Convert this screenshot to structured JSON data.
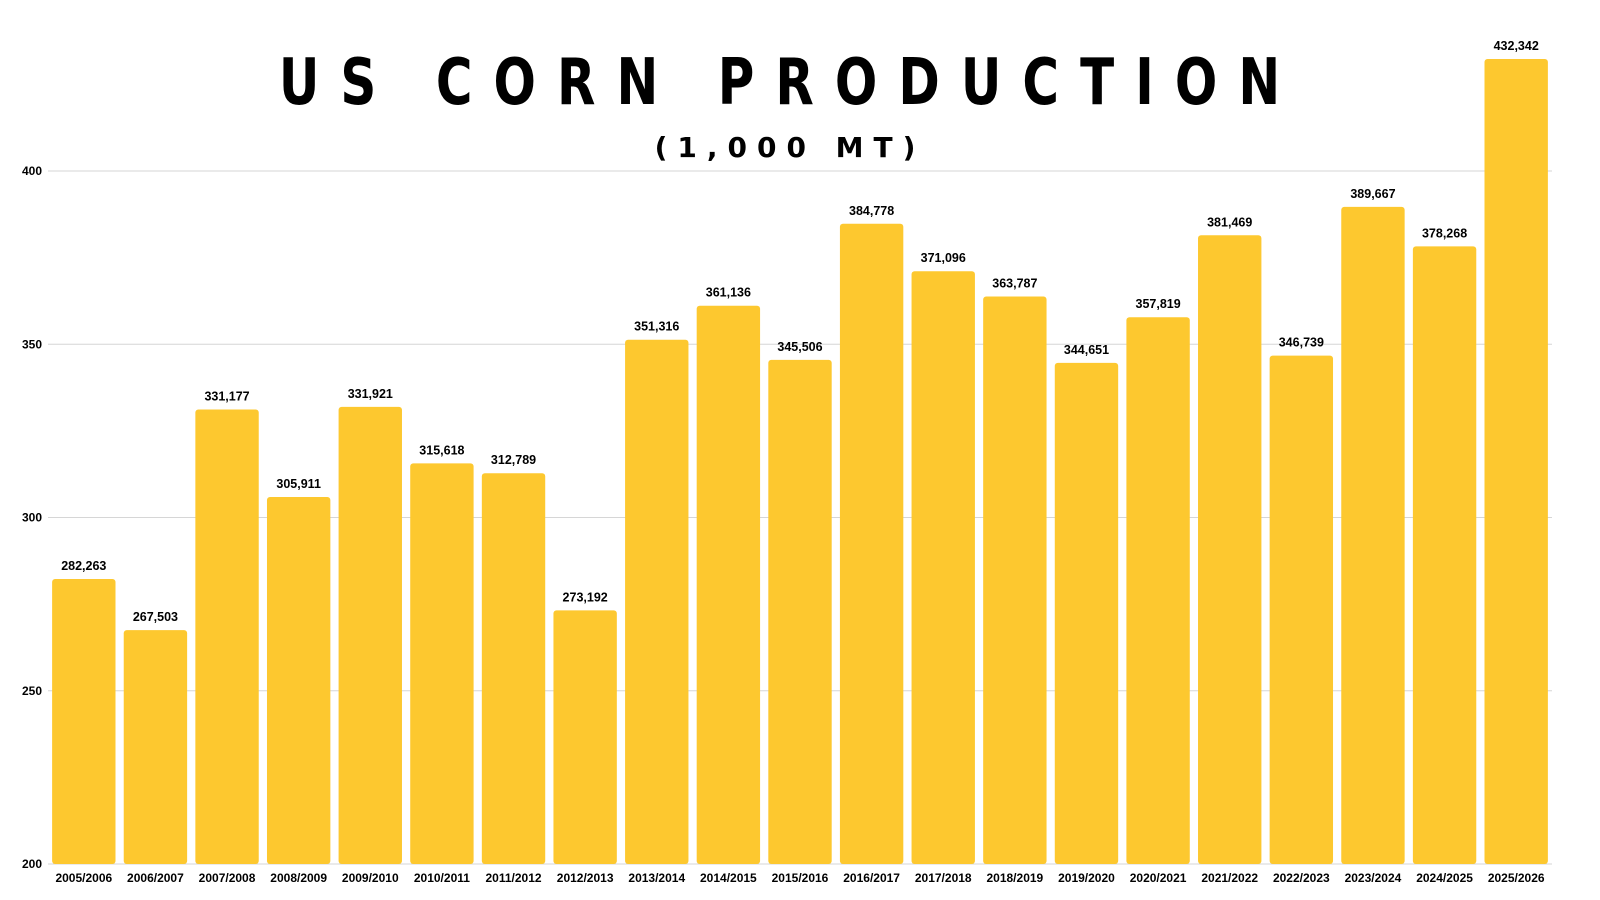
{
  "chart_data": {
    "type": "bar",
    "title": "US CORN PRODUCTION",
    "subtitle": "(1,000 MT)",
    "xlabel": "",
    "ylabel": "",
    "ylim": [
      200,
      432.342
    ],
    "yticks": [
      "200",
      "250",
      "300",
      "350",
      "400"
    ],
    "grid": true,
    "bar_color": "#fdc82f",
    "categories": [
      "2005/2006",
      "2006/2007",
      "2007/2008",
      "2008/2009",
      "2009/2010",
      "2010/2011",
      "2011/2012",
      "2012/2013",
      "2013/2014",
      "2014/2015",
      "2015/2016",
      "2016/2017",
      "2017/2018",
      "2018/2019",
      "2019/2020",
      "2020/2021",
      "2021/2022",
      "2022/2023",
      "2023/2024",
      "2024/2025",
      "2025/2026"
    ],
    "values": [
      282.263,
      267.503,
      331.177,
      305.911,
      331.921,
      315.618,
      312.789,
      273.192,
      351.316,
      361.136,
      345.506,
      384.778,
      371.096,
      363.787,
      344.651,
      357.819,
      381.469,
      346.739,
      389.667,
      378.268,
      432.342
    ],
    "labels": [
      "282,263",
      "267,503",
      "331,177",
      "305,911",
      "331,921",
      "315,618",
      "312,789",
      "273,192",
      "351,316",
      "361,136",
      "345,506",
      "384,778",
      "371,096",
      "363,787",
      "344,651",
      "357,819",
      "381,469",
      "346,739",
      "389,667",
      "378,268",
      "432,342"
    ]
  }
}
